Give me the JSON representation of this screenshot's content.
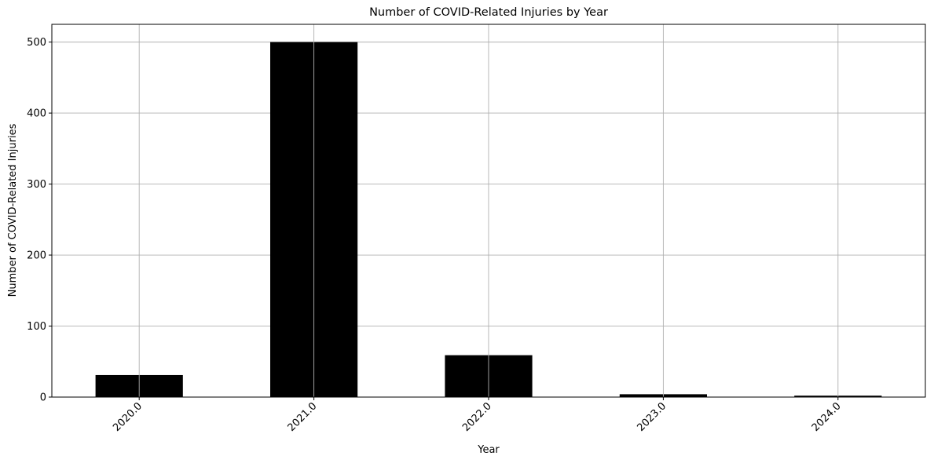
{
  "chart_data": {
    "type": "bar",
    "title": "Number of COVID-Related Injuries by Year",
    "xlabel": "Year",
    "ylabel": "Number of COVID-Related Injuries",
    "categories": [
      "2020.0",
      "2021.0",
      "2022.0",
      "2023.0",
      "2024.0"
    ],
    "values": [
      31,
      500,
      59,
      4,
      2
    ],
    "ylim": [
      0,
      525
    ],
    "yticks": [
      0,
      100,
      200,
      300,
      400,
      500
    ],
    "grid": true,
    "bar_color": "#000000",
    "grid_color": "#b0b0b0",
    "xtick_rotation": 45
  }
}
